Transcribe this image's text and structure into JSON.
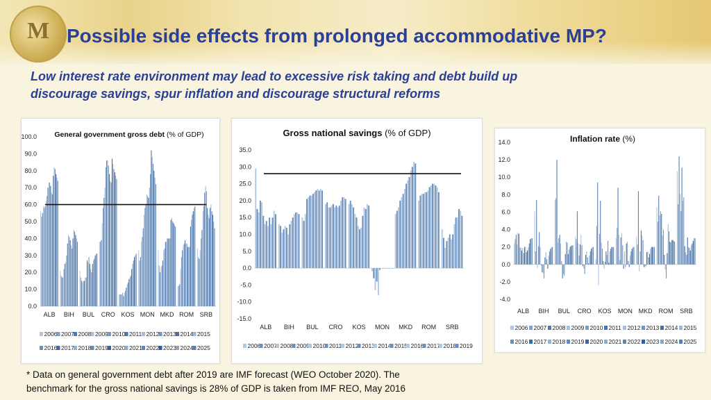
{
  "header": {
    "title": "Possible side effects from prolonged accommodative MP?",
    "subtitle_line1": "Low interest rate environment may lead to excessive risk taking and debt build up",
    "subtitle_line2": "discourage savings, spur inflation and discourage structural reforms",
    "logo_text": "M"
  },
  "footnote": {
    "line1": "* Data on general government debt after 2019 are IMF forecast (WEO October 2020). The",
    "line2": "benchmark for the gross national savings is 28% of GDP is taken from IMF REO, May 2016"
  },
  "colors": {
    "title": "#2b3f95",
    "bar_light": "#c9d9ec",
    "bar_dark": "#2e5f9a"
  },
  "chart_data": [
    {
      "type": "bar",
      "title": "General government gross debt",
      "title_suffix": "(% of GDP)",
      "categories": [
        "ALB",
        "BIH",
        "BUL",
        "CRO",
        "KOS",
        "MON",
        "MKD",
        "ROM",
        "SRB"
      ],
      "series_years": [
        "2006",
        "2007",
        "2008",
        "2009",
        "2010",
        "2011",
        "2012",
        "2013",
        "2014",
        "2015",
        "2016",
        "2017",
        "2018",
        "2019",
        "2020",
        "2021",
        "2022",
        "2023",
        "2024",
        "2025"
      ],
      "ylim": [
        0,
        100
      ],
      "yticks": [
        "0.0",
        "10.0",
        "20.0",
        "30.0",
        "40.0",
        "50.0",
        "60.0",
        "70.0",
        "80.0",
        "90.0",
        "100.0"
      ],
      "benchmark": 60,
      "values": [
        [
          56,
          53,
          55,
          59,
          58,
          59,
          62,
          65,
          70,
          73,
          73,
          71,
          67,
          66,
          77,
          82,
          81,
          78,
          76,
          74
        ],
        [
          21,
          18,
          17,
          17,
          22,
          25,
          26,
          30,
          37,
          42,
          41,
          39,
          36,
          34,
          40,
          45,
          44,
          42,
          40,
          38
        ],
        [
          21,
          17,
          15,
          14,
          15,
          15,
          17,
          17,
          27,
          26,
          29,
          25,
          22,
          20,
          25,
          27,
          28,
          30,
          31,
          31
        ],
        [
          38,
          38,
          39,
          49,
          58,
          64,
          70,
          82,
          86,
          86,
          83,
          78,
          74,
          73,
          87,
          84,
          81,
          79,
          77,
          75
        ],
        [
          7,
          7,
          7,
          7,
          8,
          6,
          8,
          9,
          11,
          13,
          14,
          16,
          17,
          18,
          22,
          25,
          27,
          29,
          30,
          31
        ],
        [
          33,
          27,
          29,
          38,
          41,
          46,
          54,
          58,
          60,
          66,
          65,
          64,
          70,
          78,
          92,
          88,
          84,
          80,
          76,
          72
        ],
        [
          33,
          24,
          20,
          23,
          24,
          27,
          33,
          34,
          38,
          38,
          40,
          40,
          40,
          40,
          51,
          52,
          50,
          49,
          48,
          47
        ],
        [
          12,
          12,
          13,
          22,
          29,
          33,
          36,
          37,
          39,
          37,
          37,
          35,
          35,
          35,
          47,
          51,
          54,
          56,
          58,
          59
        ],
        [
          34,
          29,
          28,
          33,
          40,
          45,
          56,
          59,
          67,
          71,
          68,
          58,
          54,
          52,
          58,
          60,
          56,
          54,
          50,
          46
        ]
      ]
    },
    {
      "type": "bar",
      "title": "Gross national savings",
      "title_suffix": "(% of GDP)",
      "categories": [
        "ALB",
        "BIH",
        "BUL",
        "CRO",
        "KOS",
        "MON",
        "MKD",
        "ROM",
        "SRB"
      ],
      "series_years": [
        "2006",
        "2007",
        "2008",
        "2009",
        "2010",
        "2011",
        "2012",
        "2013",
        "2014",
        "2015",
        "2016",
        "2017",
        "2018",
        "2019"
      ],
      "ylim": [
        -15,
        35
      ],
      "yticks": [
        "-15.0",
        "-10.0",
        "-5.0",
        "0.0",
        "5.0",
        "10.0",
        "15.0",
        "20.0",
        "25.0",
        "30.0",
        "35.0"
      ],
      "benchmark": 28,
      "values": [
        [
          29.5,
          17.5,
          16.5,
          20,
          19.5,
          15.5,
          13,
          14,
          12.5,
          15,
          13,
          15,
          17,
          16
        ],
        [
          13,
          12.5,
          10.5,
          11.5,
          12.5,
          12,
          10,
          13,
          14,
          15,
          16,
          16.5,
          16.5,
          16
        ],
        [
          15,
          14,
          16,
          20.5,
          21,
          21.5,
          21.5,
          22,
          22.5,
          23,
          23.5,
          23,
          23.5,
          23
        ],
        [
          19,
          19.5,
          18,
          18,
          18.5,
          19,
          18,
          18.5,
          18,
          18.5,
          20,
          21,
          21,
          20.5
        ],
        [
          19,
          20,
          19,
          18,
          16,
          15,
          12.5,
          11.5,
          12,
          15.5,
          18,
          17.5,
          19,
          18.5
        ],
        [
          -1,
          -3,
          -6.5,
          -4,
          -8,
          -0.5,
          0,
          0,
          0,
          0,
          0,
          0,
          0,
          0
        ],
        [
          16,
          17,
          18,
          20,
          21,
          22,
          23.5,
          25,
          26,
          27,
          29,
          30,
          31.5,
          31
        ],
        [
          20,
          21.5,
          22,
          22,
          22.5,
          22.5,
          23,
          24,
          24.5,
          25,
          25,
          24.5,
          24,
          22.5
        ],
        [
          11.5,
          9,
          6,
          8,
          9,
          10,
          8.5,
          10,
          13,
          15,
          15,
          17.5,
          17,
          15.5
        ]
      ]
    },
    {
      "type": "bar",
      "title": "Inflation rate",
      "title_suffix": "(%)",
      "categories": [
        "ALB",
        "BIH",
        "BUL",
        "CRO",
        "KOS",
        "MON",
        "MKD",
        "ROM",
        "SRB"
      ],
      "series_years": [
        "2006",
        "2007",
        "2008",
        "2009",
        "2010",
        "2011",
        "2012",
        "2013",
        "2014",
        "2015",
        "2016",
        "2017",
        "2018",
        "2019",
        "2020",
        "2021",
        "2022",
        "2023",
        "2024",
        "2025"
      ],
      "ylim": [
        -4,
        14
      ],
      "yticks": [
        "-4.0",
        "-2.0",
        "0.0",
        "2.0",
        "4.0",
        "6.0",
        "8.0",
        "10.0",
        "12.0",
        "14.0"
      ],
      "values": [
        [
          2.4,
          2.9,
          3.4,
          2.3,
          3.6,
          3.5,
          2.0,
          1.9,
          1.6,
          1.9,
          1.3,
          2.0,
          2.0,
          1.4,
          1.6,
          2.0,
          2.4,
          2.9,
          3.0,
          3.0
        ],
        [
          6.1,
          1.5,
          7.4,
          -0.4,
          2.1,
          3.7,
          2.0,
          -0.1,
          -0.9,
          -1.0,
          -1.6,
          0.8,
          1.4,
          0.6,
          -0.5,
          1.0,
          1.5,
          1.8,
          2.0,
          2.0
        ],
        [
          7.4,
          7.6,
          12.0,
          2.5,
          3.0,
          3.4,
          2.4,
          0.4,
          -1.6,
          -1.1,
          -1.3,
          1.2,
          2.6,
          2.5,
          1.2,
          1.7,
          2.0,
          2.1,
          2.2,
          2.2
        ],
        [
          3.2,
          2.9,
          6.1,
          2.4,
          1.0,
          2.3,
          3.4,
          2.2,
          -0.2,
          -0.5,
          -1.1,
          1.1,
          1.5,
          0.8,
          0.1,
          1.0,
          1.5,
          1.8,
          2.0,
          2.0
        ],
        [
          0.6,
          4.4,
          9.4,
          -2.4,
          3.5,
          7.3,
          2.5,
          1.8,
          0.4,
          -0.5,
          0.3,
          1.5,
          1.1,
          2.7,
          0.2,
          1.5,
          1.8,
          2.0,
          2.0,
          2.0
        ],
        [
          3.0,
          4.2,
          8.8,
          3.4,
          0.5,
          3.1,
          3.6,
          2.2,
          -0.5,
          1.5,
          -0.3,
          2.4,
          2.6,
          0.4,
          -0.3,
          1.0,
          1.5,
          1.8,
          2.0,
          2.0
        ],
        [
          3.2,
          2.3,
          8.4,
          -0.8,
          1.5,
          3.9,
          3.3,
          2.8,
          -0.3,
          -0.3,
          -0.2,
          1.4,
          1.5,
          0.8,
          1.2,
          1.8,
          2.0,
          2.0,
          2.0,
          2.0
        ],
        [
          6.6,
          4.9,
          7.9,
          5.6,
          6.1,
          5.8,
          3.3,
          4.0,
          1.1,
          -0.6,
          -1.6,
          1.3,
          4.6,
          3.8,
          2.6,
          2.5,
          2.8,
          2.8,
          2.7,
          2.6
        ],
        [
          10.7,
          6.9,
          12.4,
          8.1,
          6.1,
          11.1,
          7.3,
          7.7,
          2.1,
          1.4,
          1.1,
          3.1,
          2.0,
          1.9,
          1.6,
          2.2,
          2.4,
          2.7,
          3.0,
          3.0
        ]
      ]
    }
  ]
}
